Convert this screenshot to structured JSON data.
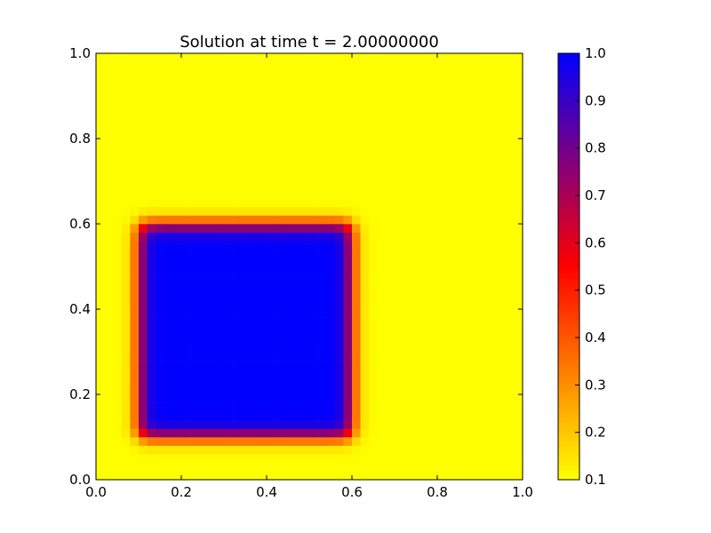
{
  "chart_data": {
    "type": "heatmap",
    "title": "Solution at time t =     2.00000000",
    "xlabel": "",
    "ylabel": "",
    "xlim": [
      0.0,
      1.0
    ],
    "ylim": [
      0.0,
      1.0
    ],
    "x_ticks": [
      "0.0",
      "0.2",
      "0.4",
      "0.6",
      "0.8",
      "1.0"
    ],
    "y_ticks": [
      "0.0",
      "0.2",
      "0.4",
      "0.6",
      "0.8",
      "1.0"
    ],
    "grid": false,
    "colormap": {
      "stops": [
        {
          "value": 0.1,
          "color": "#ffff00"
        },
        {
          "value": 0.55,
          "color": "#ff0000"
        },
        {
          "value": 1.0,
          "color": "#0000ff"
        }
      ],
      "range": [
        0.1,
        1.0
      ]
    },
    "colorbar": {
      "ticks": [
        "0.1",
        "0.2",
        "0.3",
        "0.4",
        "0.5",
        "0.6",
        "0.7",
        "0.8",
        "0.9",
        "1.0"
      ],
      "placement": "right"
    },
    "field": {
      "grid_cells": 50,
      "background_value": 0.1,
      "peak_value": 1.0,
      "square_region": {
        "x": [
          0.1,
          0.6
        ],
        "y": [
          0.1,
          0.6
        ]
      },
      "edge_smoothing": 0.04
    }
  }
}
